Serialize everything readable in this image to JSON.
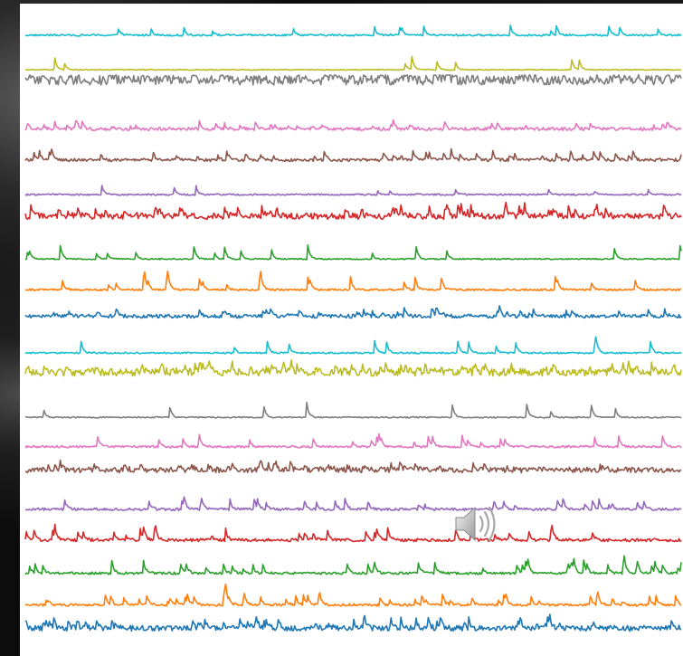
{
  "chart_data": {
    "type": "line",
    "title": "",
    "xlabel": "",
    "ylabel": "",
    "grid": false,
    "legend": "none",
    "n_samples": 600,
    "series": [
      {
        "color": "#17becf",
        "baseline": 0.82,
        "noise": 0.06,
        "spike_rate": 0.02,
        "spike_amp": 0.45
      },
      {
        "color": "#bcbd22",
        "baseline": 0.9,
        "noise": 0.03,
        "spike_rate": 0.01,
        "spike_amp": 0.55
      },
      {
        "color": "#7f7f7f",
        "baseline": 0.35,
        "noise": 0.3,
        "spike_rate": 0.08,
        "spike_amp": 0.4
      },
      {
        "color": "#e377c2",
        "baseline": 0.8,
        "noise": 0.1,
        "spike_rate": 0.06,
        "spike_amp": 0.3
      },
      {
        "color": "#8c564b",
        "baseline": 0.78,
        "noise": 0.1,
        "spike_rate": 0.06,
        "spike_amp": 0.4
      },
      {
        "color": "#9467bd",
        "baseline": 0.85,
        "noise": 0.05,
        "spike_rate": 0.02,
        "spike_amp": 0.4
      },
      {
        "color": "#d62728",
        "baseline": 0.6,
        "noise": 0.2,
        "spike_rate": 0.09,
        "spike_amp": 0.45
      },
      {
        "color": "#2ca02c",
        "baseline": 0.88,
        "noise": 0.04,
        "spike_rate": 0.03,
        "spike_amp": 0.6
      },
      {
        "color": "#ff7f0e",
        "baseline": 0.86,
        "noise": 0.06,
        "spike_rate": 0.04,
        "spike_amp": 0.55
      },
      {
        "color": "#1f77b4",
        "baseline": 0.72,
        "noise": 0.12,
        "spike_rate": 0.06,
        "spike_amp": 0.3
      },
      {
        "color": "#17becf",
        "baseline": 0.85,
        "noise": 0.05,
        "spike_rate": 0.03,
        "spike_amp": 0.55
      },
      {
        "color": "#bcbd22",
        "baseline": 0.55,
        "noise": 0.25,
        "spike_rate": 0.09,
        "spike_amp": 0.35
      },
      {
        "color": "#7f7f7f",
        "baseline": 0.88,
        "noise": 0.04,
        "spike_rate": 0.02,
        "spike_amp": 0.6
      },
      {
        "color": "#e377c2",
        "baseline": 0.82,
        "noise": 0.07,
        "spike_rate": 0.04,
        "spike_amp": 0.45
      },
      {
        "color": "#8c564b",
        "baseline": 0.6,
        "noise": 0.18,
        "spike_rate": 0.06,
        "spike_amp": 0.3
      },
      {
        "color": "#9467bd",
        "baseline": 0.8,
        "noise": 0.08,
        "spike_rate": 0.04,
        "spike_amp": 0.45
      },
      {
        "color": "#d62728",
        "baseline": 0.78,
        "noise": 0.1,
        "spike_rate": 0.05,
        "spike_amp": 0.5
      },
      {
        "color": "#2ca02c",
        "baseline": 0.82,
        "noise": 0.08,
        "spike_rate": 0.06,
        "spike_amp": 0.5
      },
      {
        "color": "#ff7f0e",
        "baseline": 0.82,
        "noise": 0.08,
        "spike_rate": 0.07,
        "spike_amp": 0.45
      },
      {
        "color": "#1f77b4",
        "baseline": 0.6,
        "noise": 0.18,
        "spike_rate": 0.08,
        "spike_amp": 0.4
      }
    ]
  },
  "media": {
    "speaker_icon": "speaker-icon"
  }
}
